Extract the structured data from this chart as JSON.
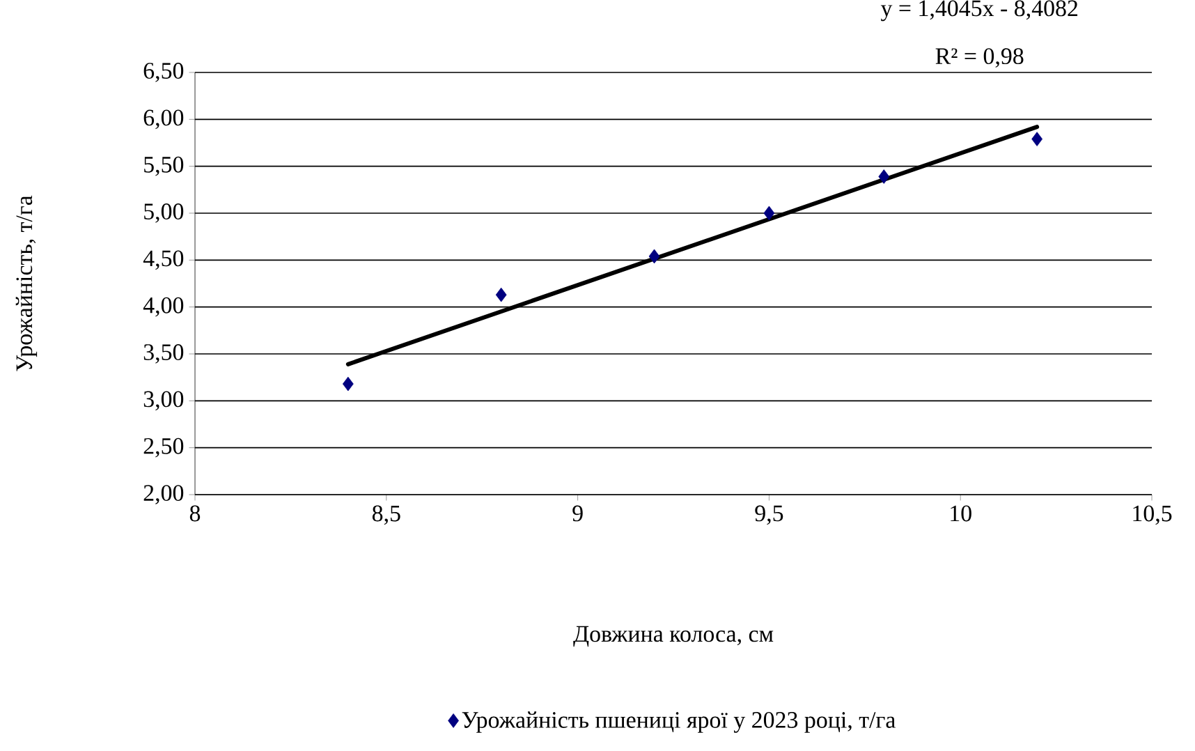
{
  "chart_data": {
    "type": "scatter",
    "xlabel": "Довжина колоса, см",
    "ylabel": "Урожайність,  т/га",
    "x": [
      8.4,
      8.8,
      9.2,
      9.5,
      9.8,
      10.2
    ],
    "series": [
      {
        "name": "Урожайність пшениці ярої у 2023 році, т/га",
        "color": "#000080",
        "marker": "diamond",
        "values": [
          3.18,
          4.13,
          4.54,
          5.0,
          5.39,
          5.79
        ]
      },
      {
        "type": "line",
        "color": "#000000",
        "marker": "none",
        "x": [
          8.4,
          10.2
        ],
        "values": [
          3.39,
          5.92
        ]
      }
    ],
    "xlim": [
      8,
      10.5
    ],
    "xticks": [
      8,
      {
        "value": 8.5,
        "label": "8,5"
      },
      9,
      {
        "value": 9.5,
        "label": "9,5"
      },
      10,
      {
        "value": 10.5,
        "label": "10,5"
      }
    ],
    "ylim": [
      2,
      6.5
    ],
    "yticks": [
      {
        "value": 2,
        "label": "2,00"
      },
      {
        "value": 2.5,
        "label": "2,50"
      },
      {
        "value": 3,
        "label": "3,00"
      },
      {
        "value": 3.5,
        "label": "3,50"
      },
      {
        "value": 4,
        "label": "4,00"
      },
      {
        "value": 4.5,
        "label": "4,50"
      },
      {
        "value": 5,
        "label": "5,00"
      },
      {
        "value": 5.5,
        "label": "5,50"
      },
      {
        "value": 6,
        "label": "6,00"
      },
      {
        "value": 6.5,
        "label": "6,50"
      }
    ],
    "grid": "y",
    "legend": "bottom",
    "annotations": [
      "y = 1,4045x - 8,4082",
      "R² = 0,98"
    ]
  }
}
